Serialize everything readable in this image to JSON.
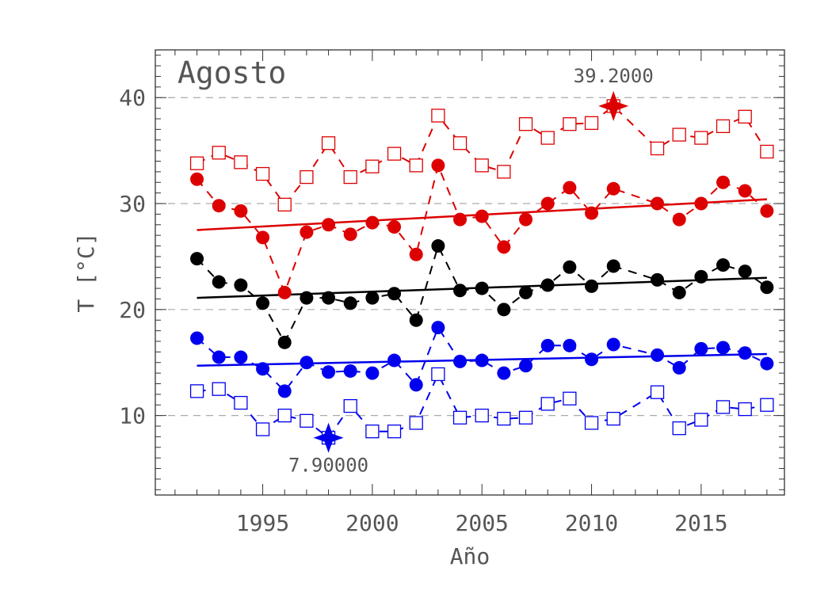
{
  "chart_data": {
    "type": "line",
    "title": "Agosto",
    "xlabel": "Año",
    "ylabel": "T [°C]",
    "xlim": [
      1990.1,
      2018.8
    ],
    "ylim": [
      2.5,
      44.5
    ],
    "x_ticks": [
      1995,
      2000,
      2005,
      2010,
      2015
    ],
    "y_ticks": [
      10,
      20,
      30,
      40
    ],
    "grid": "horizontal dashed at y ticks",
    "colors": {
      "max": "#dd0000",
      "mean": "#000000",
      "min": "#0000ee",
      "grid": "#aaaaaa"
    },
    "series": [
      {
        "key": "abs_max",
        "color": "#dd0000",
        "marker": "open-square",
        "line": "dashed",
        "points": [
          [
            1992,
            33.8
          ],
          [
            1993,
            34.8
          ],
          [
            1994,
            33.9
          ],
          [
            1995,
            32.8
          ],
          [
            1996,
            29.9
          ],
          [
            1997,
            32.5
          ],
          [
            1998,
            35.7
          ],
          [
            1999,
            32.5
          ],
          [
            2000,
            33.5
          ],
          [
            2001,
            34.7
          ],
          [
            2002,
            33.6
          ],
          [
            2003,
            38.3
          ],
          [
            2004,
            35.7
          ],
          [
            2005,
            33.6
          ],
          [
            2006,
            33.0
          ],
          [
            2007,
            37.5
          ],
          [
            2008,
            36.2
          ],
          [
            2009,
            37.5
          ],
          [
            2010,
            37.6
          ],
          [
            2011,
            39.2
          ],
          [
            2013,
            35.2
          ],
          [
            2014,
            36.5
          ],
          [
            2015,
            36.2
          ],
          [
            2016,
            37.3
          ],
          [
            2017,
            38.2
          ],
          [
            2018,
            34.9
          ]
        ]
      },
      {
        "key": "mean_max",
        "color": "#dd0000",
        "marker": "filled-circle",
        "line": "dashed",
        "points": [
          [
            1992,
            32.3
          ],
          [
            1993,
            29.8
          ],
          [
            1994,
            29.3
          ],
          [
            1995,
            26.8
          ],
          [
            1996,
            21.6
          ],
          [
            1997,
            27.3
          ],
          [
            1998,
            28.0
          ],
          [
            1999,
            27.1
          ],
          [
            2000,
            28.2
          ],
          [
            2001,
            27.8
          ],
          [
            2002,
            25.2
          ],
          [
            2003,
            33.6
          ],
          [
            2004,
            28.5
          ],
          [
            2005,
            28.8
          ],
          [
            2006,
            25.9
          ],
          [
            2007,
            28.5
          ],
          [
            2008,
            30.0
          ],
          [
            2009,
            31.5
          ],
          [
            2010,
            29.1
          ],
          [
            2011,
            31.4
          ],
          [
            2013,
            30.0
          ],
          [
            2014,
            28.5
          ],
          [
            2015,
            30.0
          ],
          [
            2016,
            32.0
          ],
          [
            2017,
            31.2
          ],
          [
            2018,
            29.3
          ]
        ]
      },
      {
        "key": "mean",
        "color": "#000000",
        "marker": "filled-circle",
        "line": "dashed",
        "points": [
          [
            1992,
            24.8
          ],
          [
            1993,
            22.6
          ],
          [
            1994,
            22.3
          ],
          [
            1995,
            20.6
          ],
          [
            1996,
            16.9
          ],
          [
            1997,
            21.1
          ],
          [
            1998,
            21.1
          ],
          [
            1999,
            20.6
          ],
          [
            2000,
            21.1
          ],
          [
            2001,
            21.5
          ],
          [
            2002,
            19.0
          ],
          [
            2003,
            26.0
          ],
          [
            2004,
            21.8
          ],
          [
            2005,
            22.0
          ],
          [
            2006,
            20.0
          ],
          [
            2007,
            21.6
          ],
          [
            2008,
            22.3
          ],
          [
            2009,
            24.0
          ],
          [
            2010,
            22.2
          ],
          [
            2011,
            24.1
          ],
          [
            2013,
            22.8
          ],
          [
            2014,
            21.6
          ],
          [
            2015,
            23.1
          ],
          [
            2016,
            24.2
          ],
          [
            2017,
            23.6
          ],
          [
            2018,
            22.1
          ]
        ]
      },
      {
        "key": "mean_min",
        "color": "#0000ee",
        "marker": "filled-circle",
        "line": "dashed",
        "points": [
          [
            1992,
            17.3
          ],
          [
            1993,
            15.5
          ],
          [
            1994,
            15.5
          ],
          [
            1995,
            14.4
          ],
          [
            1996,
            12.3
          ],
          [
            1997,
            15.0
          ],
          [
            1998,
            14.1
          ],
          [
            1999,
            14.2
          ],
          [
            2000,
            14.0
          ],
          [
            2001,
            15.2
          ],
          [
            2002,
            12.9
          ],
          [
            2003,
            18.3
          ],
          [
            2004,
            15.1
          ],
          [
            2005,
            15.2
          ],
          [
            2006,
            14.0
          ],
          [
            2007,
            14.7
          ],
          [
            2008,
            16.6
          ],
          [
            2009,
            16.6
          ],
          [
            2010,
            15.3
          ],
          [
            2011,
            16.7
          ],
          [
            2013,
            15.7
          ],
          [
            2014,
            14.5
          ],
          [
            2015,
            16.3
          ],
          [
            2016,
            16.4
          ],
          [
            2017,
            15.9
          ],
          [
            2018,
            14.9
          ]
        ]
      },
      {
        "key": "abs_min",
        "color": "#0000ee",
        "marker": "open-square",
        "line": "dashed",
        "points": [
          [
            1992,
            12.3
          ],
          [
            1993,
            12.5
          ],
          [
            1994,
            11.2
          ],
          [
            1995,
            8.7
          ],
          [
            1996,
            10.0
          ],
          [
            1997,
            9.5
          ],
          [
            1998,
            7.9
          ],
          [
            1999,
            10.9
          ],
          [
            2000,
            8.5
          ],
          [
            2001,
            8.5
          ],
          [
            2002,
            9.3
          ],
          [
            2003,
            13.9
          ],
          [
            2004,
            9.8
          ],
          [
            2005,
            10.0
          ],
          [
            2006,
            9.7
          ],
          [
            2007,
            9.8
          ],
          [
            2008,
            11.1
          ],
          [
            2009,
            11.6
          ],
          [
            2010,
            9.3
          ],
          [
            2011,
            9.7
          ],
          [
            2013,
            12.2
          ],
          [
            2014,
            8.8
          ],
          [
            2015,
            9.6
          ],
          [
            2016,
            10.8
          ],
          [
            2017,
            10.6
          ],
          [
            2018,
            11.0
          ]
        ]
      }
    ],
    "trends": [
      {
        "key": "trend_mean_max",
        "color": "#dd0000",
        "x": [
          1992,
          2018
        ],
        "y": [
          27.5,
          30.4
        ]
      },
      {
        "key": "trend_mean",
        "color": "#000000",
        "x": [
          1992,
          2018
        ],
        "y": [
          21.1,
          23.0
        ]
      },
      {
        "key": "trend_mean_min",
        "color": "#0000ee",
        "x": [
          1992,
          2018
        ],
        "y": [
          14.7,
          15.8
        ]
      }
    ],
    "extremes": [
      {
        "key": "record_max",
        "color": "#dd0000",
        "x": 2011,
        "y": 39.2,
        "label": "39.2000",
        "label_position": "above"
      },
      {
        "key": "record_min",
        "color": "#0000ee",
        "x": 1998,
        "y": 7.9,
        "label": "7.90000",
        "label_position": "below"
      }
    ]
  }
}
